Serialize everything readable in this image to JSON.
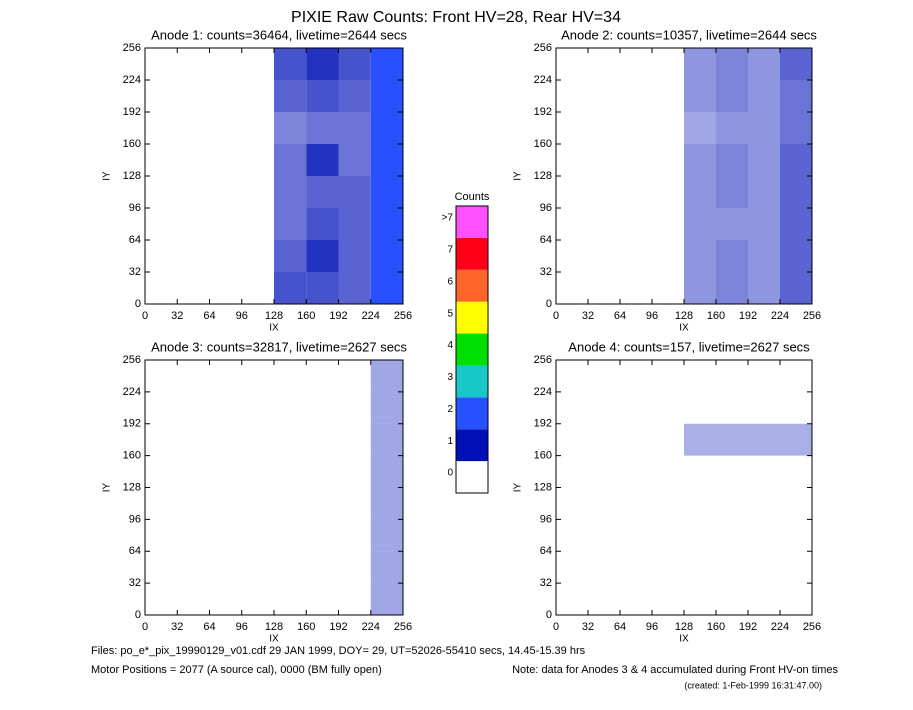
{
  "title": "PIXIE Raw Counts:  Front HV=28, Rear HV=34",
  "chart_data": [
    {
      "type": "heatmap",
      "title": "Anode 1: counts=36464, livetime=2644 secs",
      "xlabel": "IX",
      "ylabel": "IY",
      "xlim": [
        0,
        256
      ],
      "ylim": [
        0,
        256
      ],
      "xticks": [
        0,
        32,
        64,
        96,
        128,
        160,
        192,
        224,
        256
      ],
      "yticks": [
        0,
        32,
        64,
        96,
        128,
        160,
        192,
        224,
        256
      ],
      "x_bins": [
        0,
        32,
        64,
        96,
        128,
        160,
        192,
        224,
        256
      ],
      "y_bins": [
        0,
        32,
        64,
        96,
        128,
        160,
        192,
        224,
        256
      ],
      "values": [
        [
          0,
          0,
          0,
          0,
          0.6,
          0.6,
          0.5,
          1.5
        ],
        [
          0,
          0,
          0,
          0,
          0.5,
          0.8,
          0.5,
          1.5
        ],
        [
          0,
          0,
          0,
          0,
          0.4,
          0.6,
          0.5,
          1.5
        ],
        [
          0,
          0,
          0,
          0,
          0.4,
          0.5,
          0.5,
          1.5
        ],
        [
          0,
          0,
          0,
          0,
          0.4,
          0.8,
          0.4,
          1.5
        ],
        [
          0,
          0,
          0,
          0,
          0.3,
          0.4,
          0.4,
          1.5
        ],
        [
          0,
          0,
          0,
          0,
          0.5,
          0.6,
          0.5,
          1.5
        ],
        [
          0,
          0,
          0,
          0,
          0.6,
          0.8,
          0.6,
          1.5
        ]
      ]
    },
    {
      "type": "heatmap",
      "title": "Anode 2: counts=10357, livetime=2644 secs",
      "xlabel": "IX",
      "ylabel": "IY",
      "xlim": [
        0,
        256
      ],
      "ylim": [
        0,
        256
      ],
      "xticks": [
        0,
        32,
        64,
        96,
        128,
        160,
        192,
        224,
        256
      ],
      "yticks": [
        0,
        32,
        64,
        96,
        128,
        160,
        192,
        224,
        256
      ],
      "x_bins": [
        0,
        32,
        64,
        96,
        128,
        160,
        192,
        224,
        256
      ],
      "y_bins": [
        0,
        32,
        64,
        96,
        128,
        160,
        192,
        224,
        256
      ],
      "values": [
        [
          0,
          0,
          0,
          0,
          0.2,
          0.3,
          0.2,
          0.5
        ],
        [
          0,
          0,
          0,
          0,
          0.2,
          0.3,
          0.2,
          0.5
        ],
        [
          0,
          0,
          0,
          0,
          0.2,
          0.2,
          0.2,
          0.5
        ],
        [
          0,
          0,
          0,
          0,
          0.2,
          0.3,
          0.2,
          0.5
        ],
        [
          0,
          0,
          0,
          0,
          0.2,
          0.3,
          0.2,
          0.5
        ],
        [
          0,
          0,
          0,
          0,
          0.1,
          0.2,
          0.2,
          0.4
        ],
        [
          0,
          0,
          0,
          0,
          0.2,
          0.3,
          0.2,
          0.4
        ],
        [
          0,
          0,
          0,
          0,
          0.2,
          0.3,
          0.2,
          0.5
        ]
      ]
    },
    {
      "type": "heatmap",
      "title": "Anode 3: counts=32817, livetime=2627 secs",
      "xlabel": "IX",
      "ylabel": "IY",
      "xlim": [
        0,
        256
      ],
      "ylim": [
        0,
        256
      ],
      "xticks": [
        0,
        32,
        64,
        96,
        128,
        160,
        192,
        224,
        256
      ],
      "yticks": [
        0,
        32,
        64,
        96,
        128,
        160,
        192,
        224,
        256
      ],
      "x_bins": [
        0,
        32,
        64,
        96,
        128,
        160,
        192,
        224,
        256
      ],
      "y_bins": [
        0,
        32,
        64,
        96,
        128,
        160,
        192,
        224,
        256
      ],
      "values": [
        [
          0,
          0,
          0,
          0,
          0,
          0,
          0,
          0.1
        ],
        [
          0,
          0,
          0,
          0,
          0,
          0,
          0,
          0.1
        ],
        [
          0,
          0,
          0,
          0,
          0,
          0,
          0,
          0.1
        ],
        [
          0,
          0,
          0,
          0,
          0,
          0,
          0,
          0.1
        ],
        [
          0,
          0,
          0,
          0,
          0,
          0,
          0,
          0.1
        ],
        [
          0,
          0,
          0,
          0,
          0,
          0,
          0,
          0.1
        ],
        [
          0,
          0,
          0,
          0,
          0,
          0,
          0,
          0.1
        ],
        [
          0,
          0,
          0,
          0,
          0,
          0,
          0,
          0.1
        ]
      ]
    },
    {
      "type": "heatmap",
      "title": "Anode 4: counts=157, livetime=2627 secs",
      "xlabel": "IX",
      "ylabel": "IY",
      "xlim": [
        0,
        256
      ],
      "ylim": [
        0,
        256
      ],
      "xticks": [
        0,
        32,
        64,
        96,
        128,
        160,
        192,
        224,
        256
      ],
      "yticks": [
        0,
        32,
        64,
        96,
        128,
        160,
        192,
        224,
        256
      ],
      "x_bins": [
        0,
        32,
        64,
        96,
        128,
        160,
        192,
        224,
        256
      ],
      "y_bins": [
        0,
        32,
        64,
        96,
        128,
        160,
        192,
        224,
        256
      ],
      "values": [
        [
          0,
          0,
          0,
          0,
          0,
          0,
          0,
          0
        ],
        [
          0,
          0,
          0,
          0,
          0,
          0,
          0,
          0
        ],
        [
          0,
          0,
          0,
          0,
          0,
          0,
          0,
          0
        ],
        [
          0,
          0,
          0,
          0,
          0,
          0,
          0,
          0
        ],
        [
          0,
          0,
          0,
          0,
          0,
          0,
          0,
          0
        ],
        [
          0,
          0,
          0,
          0,
          0.05,
          0.05,
          0.05,
          0.05
        ],
        [
          0,
          0,
          0,
          0,
          0,
          0,
          0,
          0
        ],
        [
          0,
          0,
          0,
          0,
          0,
          0,
          0,
          0
        ]
      ]
    }
  ],
  "colorbar": {
    "title": "Counts",
    "ticks": [
      0,
      1,
      2,
      3,
      4,
      5,
      6,
      7,
      {
        "value": 8,
        "label": ">7"
      }
    ],
    "colors": [
      "#ffffff",
      "#0010b8",
      "#2850ff",
      "#18c8c8",
      "#00e000",
      "#ffff00",
      "#ff6428",
      "#ff0018",
      "#ff50ff"
    ]
  },
  "footer": {
    "files": "Files: po_e*_pix_19990129_v01.cdf    29 JAN 1999, DOY= 29, UT=52026-55410 secs, 14.45-15.39 hrs",
    "motor": "Motor Positions = 2077 (A source cal), 0000 (BM fully open)",
    "note": "Note: data for Anodes 3 & 4 accumulated during Front HV-on times",
    "created": "(created:  1-Feb-1999 16:31:47.00)"
  }
}
